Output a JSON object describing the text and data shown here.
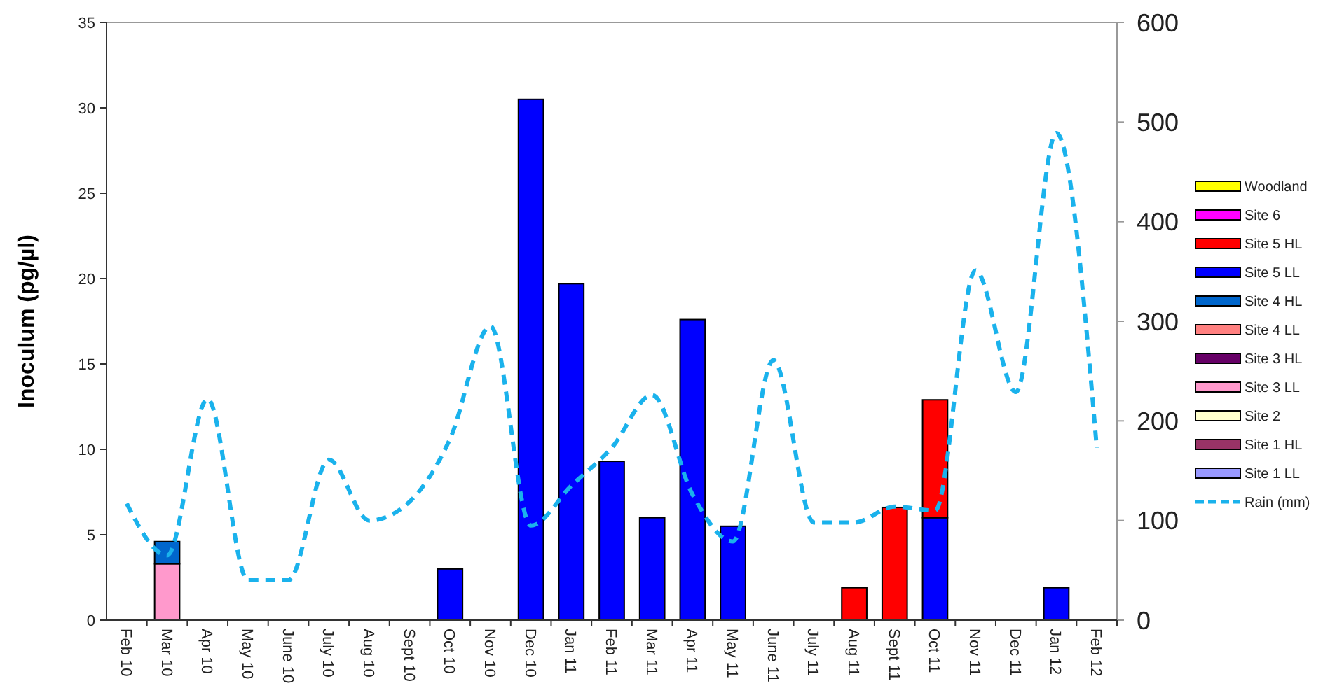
{
  "chart_data": {
    "type": "bar",
    "stacked": true,
    "ylabel": "Inoculum (pg/µl)",
    "legend": "right",
    "grid": false,
    "line_style": "dashed",
    "categories": [
      "Feb 10",
      "Mar 10",
      "Apr 10",
      "May 10",
      "June 10",
      "July 10",
      "Aug 10",
      "Sept 10",
      "Oct 10",
      "Nov 10",
      "Dec 10",
      "Jan 11",
      "Feb 11",
      "Mar 11",
      "Apr 11",
      "May 11",
      "June 11",
      "July 11",
      "Aug 11",
      "Sept 11",
      "Oct 11",
      "Nov 11",
      "Dec 11",
      "Jan 12",
      "Feb 12"
    ],
    "ylim": [
      0,
      35
    ],
    "yticks": [
      0,
      5,
      10,
      15,
      20,
      25,
      30,
      35
    ],
    "y2lim": [
      0,
      600
    ],
    "y2ticks": [
      0,
      100,
      200,
      300,
      400,
      500,
      600
    ],
    "series": [
      {
        "name": "Site 1 LL",
        "color": "#9999ff",
        "values": [
          null,
          null,
          null,
          null,
          null,
          null,
          null,
          null,
          null,
          null,
          null,
          null,
          null,
          null,
          null,
          null,
          null,
          null,
          null,
          null,
          null,
          null,
          null,
          null,
          null
        ]
      },
      {
        "name": "Site 1 HL",
        "color": "#993366",
        "values": [
          null,
          null,
          null,
          null,
          null,
          null,
          null,
          null,
          null,
          null,
          null,
          null,
          null,
          null,
          null,
          null,
          null,
          null,
          null,
          null,
          null,
          null,
          null,
          null,
          null
        ]
      },
      {
        "name": "Site 2",
        "color": "#ffffcc",
        "values": [
          null,
          null,
          null,
          null,
          null,
          null,
          null,
          null,
          null,
          null,
          null,
          null,
          null,
          null,
          null,
          null,
          null,
          null,
          null,
          null,
          null,
          null,
          null,
          null,
          null
        ]
      },
      {
        "name": "Site 3 LL",
        "color": "#ff99cc",
        "values": [
          null,
          3.3,
          null,
          null,
          null,
          null,
          null,
          null,
          null,
          null,
          null,
          null,
          null,
          null,
          null,
          null,
          null,
          null,
          null,
          null,
          null,
          null,
          null,
          null,
          null
        ]
      },
      {
        "name": "Site 3 HL",
        "color": "#660066",
        "values": [
          null,
          null,
          null,
          null,
          null,
          null,
          null,
          null,
          null,
          null,
          null,
          null,
          null,
          null,
          null,
          null,
          null,
          null,
          null,
          null,
          null,
          null,
          null,
          null,
          null
        ]
      },
      {
        "name": "Site 4 LL",
        "color": "#ff8080",
        "values": [
          null,
          null,
          null,
          null,
          null,
          null,
          null,
          null,
          null,
          null,
          null,
          null,
          null,
          null,
          null,
          null,
          null,
          null,
          null,
          null,
          null,
          null,
          null,
          null,
          null
        ]
      },
      {
        "name": "Site 4 HL",
        "color": "#0066cc",
        "values": [
          null,
          1.3,
          null,
          null,
          null,
          null,
          null,
          null,
          null,
          null,
          null,
          null,
          null,
          null,
          null,
          null,
          null,
          null,
          null,
          null,
          null,
          null,
          null,
          null,
          null
        ]
      },
      {
        "name": "Site 5 LL",
        "color": "#0000ff",
        "values": [
          null,
          null,
          null,
          null,
          null,
          null,
          null,
          null,
          3.0,
          null,
          30.5,
          19.7,
          9.3,
          6.0,
          17.6,
          5.5,
          null,
          null,
          null,
          null,
          6.0,
          null,
          null,
          1.9,
          null
        ]
      },
      {
        "name": "Site 5 HL",
        "color": "#ff0000",
        "values": [
          null,
          null,
          null,
          null,
          null,
          null,
          null,
          null,
          null,
          null,
          null,
          null,
          null,
          null,
          null,
          null,
          null,
          null,
          1.9,
          6.6,
          6.9,
          null,
          null,
          null,
          null
        ]
      },
      {
        "name": "Site 6",
        "color": "#ff00ff",
        "values": [
          null,
          null,
          null,
          null,
          null,
          null,
          null,
          null,
          null,
          null,
          null,
          null,
          null,
          null,
          null,
          null,
          null,
          null,
          null,
          null,
          null,
          null,
          null,
          null,
          null
        ]
      },
      {
        "name": "Woodland",
        "color": "#ffff00",
        "values": [
          null,
          null,
          null,
          null,
          null,
          null,
          null,
          null,
          null,
          null,
          null,
          null,
          null,
          null,
          null,
          null,
          null,
          null,
          null,
          null,
          null,
          null,
          null,
          null,
          null
        ]
      },
      {
        "name": "Rain (mm)",
        "type": "line",
        "axis": "y2",
        "color": "#1ab2ec",
        "values": [
          117,
          65,
          222,
          40,
          40,
          161,
          100,
          119,
          182,
          295,
          95,
          135,
          173,
          226,
          126,
          79,
          261,
          98,
          98,
          114,
          110,
          351,
          229,
          489,
          173
        ]
      }
    ]
  }
}
